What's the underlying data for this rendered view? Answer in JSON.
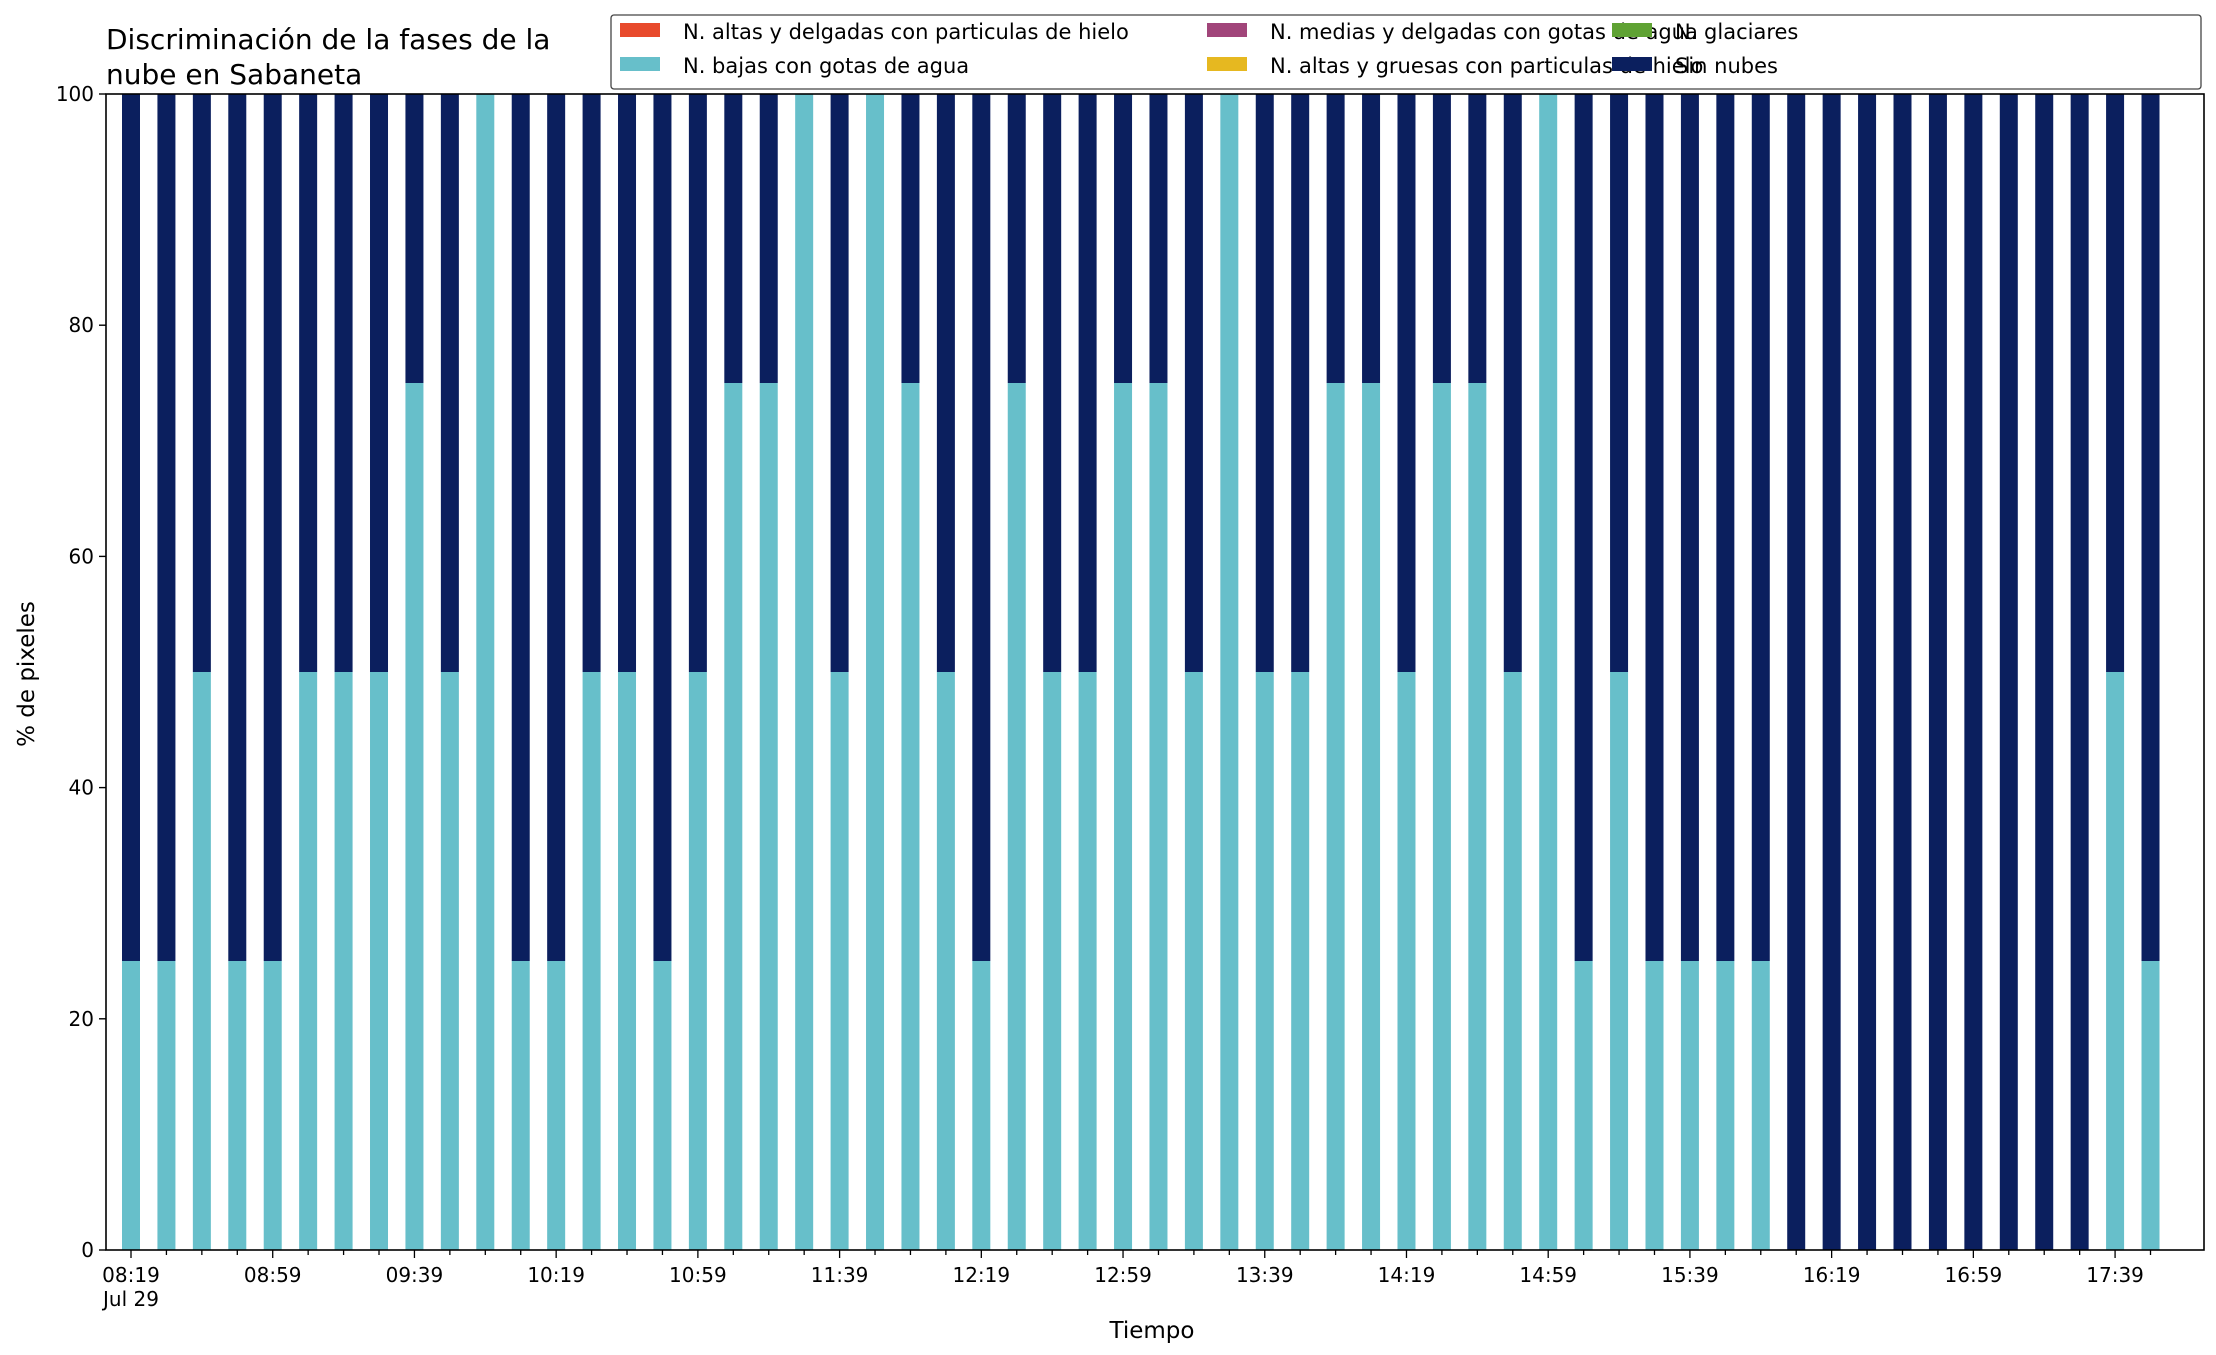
{
  "chart_data": {
    "type": "bar",
    "stacked": true,
    "title_lines": [
      "Discriminación de la fases de la",
      "nube en Sabaneta"
    ],
    "xlabel": "Tiempo",
    "ylabel": "% de pixeles",
    "ylim": [
      0,
      100
    ],
    "yticks": [
      0,
      20,
      40,
      60,
      80,
      100
    ],
    "grid": false,
    "legend_placement": "top-right",
    "categories": [
      "08:19",
      "08:29",
      "08:39",
      "08:49",
      "08:59",
      "09:09",
      "09:19",
      "09:29",
      "09:39",
      "09:49",
      "09:59",
      "10:09",
      "10:19",
      "10:29",
      "10:39",
      "10:49",
      "10:59",
      "11:09",
      "11:19",
      "11:29",
      "11:39",
      "11:49",
      "11:59",
      "12:09",
      "12:19",
      "12:29",
      "12:39",
      "12:49",
      "12:59",
      "13:09",
      "13:19",
      "13:29",
      "13:39",
      "13:49",
      "13:59",
      "14:09",
      "14:19",
      "14:29",
      "14:39",
      "14:49",
      "14:59",
      "15:09",
      "15:19",
      "15:29",
      "15:39",
      "15:49",
      "15:59",
      "16:09",
      "16:19",
      "16:29",
      "16:39",
      "16:49",
      "16:59",
      "17:09",
      "17:19",
      "17:29",
      "17:39",
      "17:49"
    ],
    "xtick_labels": [
      {
        "index": 0,
        "label": "08:19",
        "sublabel": "Jul 29"
      },
      {
        "index": 4,
        "label": "08:59"
      },
      {
        "index": 8,
        "label": "09:39"
      },
      {
        "index": 12,
        "label": "10:19"
      },
      {
        "index": 16,
        "label": "10:59"
      },
      {
        "index": 20,
        "label": "11:39"
      },
      {
        "index": 24,
        "label": "12:19"
      },
      {
        "index": 28,
        "label": "12:59"
      },
      {
        "index": 32,
        "label": "13:39"
      },
      {
        "index": 36,
        "label": "14:19"
      },
      {
        "index": 40,
        "label": "14:59"
      },
      {
        "index": 44,
        "label": "15:39"
      },
      {
        "index": 48,
        "label": "16:19"
      },
      {
        "index": 52,
        "label": "16:59"
      },
      {
        "index": 56,
        "label": "17:39"
      }
    ],
    "series": [
      {
        "name": "N. altas y delgadas con particulas de hielo",
        "color": "#e84a2c",
        "values": [
          0,
          0,
          0,
          0,
          0,
          0,
          0,
          0,
          0,
          0,
          0,
          0,
          0,
          0,
          0,
          0,
          0,
          0,
          0,
          0,
          0,
          0,
          0,
          0,
          0,
          0,
          0,
          0,
          0,
          0,
          0,
          0,
          0,
          0,
          0,
          0,
          0,
          0,
          0,
          0,
          0,
          0,
          0,
          0,
          0,
          0,
          0,
          0,
          0,
          0,
          0,
          0,
          0,
          0,
          0,
          0,
          0,
          0
        ]
      },
      {
        "name": "N. altas y gruesas con particulas de hielo",
        "color": "#e6b820",
        "values": [
          0,
          0,
          0,
          0,
          0,
          0,
          0,
          0,
          0,
          0,
          0,
          0,
          0,
          0,
          0,
          0,
          0,
          0,
          0,
          0,
          0,
          0,
          0,
          0,
          0,
          0,
          0,
          0,
          0,
          0,
          0,
          0,
          0,
          0,
          0,
          0,
          0,
          0,
          0,
          0,
          0,
          0,
          0,
          0,
          0,
          0,
          0,
          0,
          0,
          0,
          0,
          0,
          0,
          0,
          0,
          0,
          0,
          0
        ]
      },
      {
        "name": "N. bajas con gotas de agua",
        "color": "#67bfca",
        "values": [
          25,
          25,
          50,
          25,
          25,
          50,
          50,
          50,
          75,
          50,
          100,
          25,
          25,
          50,
          50,
          25,
          50,
          75,
          75,
          100,
          50,
          100,
          75,
          50,
          25,
          75,
          50,
          50,
          75,
          75,
          50,
          100,
          50,
          50,
          75,
          75,
          50,
          75,
          75,
          50,
          100,
          25,
          50,
          25,
          25,
          25,
          25,
          0,
          0,
          0,
          0,
          0,
          0,
          0,
          0,
          0,
          50,
          25
        ]
      },
      {
        "name": "N. glaciares",
        "color": "#5fa233",
        "values": [
          0,
          0,
          0,
          0,
          0,
          0,
          0,
          0,
          0,
          0,
          0,
          0,
          0,
          0,
          0,
          0,
          0,
          0,
          0,
          0,
          0,
          0,
          0,
          0,
          0,
          0,
          0,
          0,
          0,
          0,
          0,
          0,
          0,
          0,
          0,
          0,
          0,
          0,
          0,
          0,
          0,
          0,
          0,
          0,
          0,
          0,
          0,
          0,
          0,
          0,
          0,
          0,
          0,
          0,
          0,
          0,
          0,
          0
        ]
      },
      {
        "name": "N. medias y delgadas con gotas de agua",
        "color": "#a1457a",
        "values": [
          0,
          0,
          0,
          0,
          0,
          0,
          0,
          0,
          0,
          0,
          0,
          0,
          0,
          0,
          0,
          0,
          0,
          0,
          0,
          0,
          0,
          0,
          0,
          0,
          0,
          0,
          0,
          0,
          0,
          0,
          0,
          0,
          0,
          0,
          0,
          0,
          0,
          0,
          0,
          0,
          0,
          0,
          0,
          0,
          0,
          0,
          0,
          0,
          0,
          0,
          0,
          0,
          0,
          0,
          0,
          0,
          0,
          0
        ]
      },
      {
        "name": "Sin nubes",
        "color": "#0b1f5e",
        "values": [
          75,
          75,
          50,
          75,
          75,
          50,
          50,
          50,
          25,
          50,
          0,
          75,
          75,
          50,
          50,
          75,
          50,
          25,
          25,
          0,
          50,
          0,
          25,
          50,
          75,
          25,
          50,
          50,
          25,
          25,
          50,
          0,
          50,
          50,
          25,
          25,
          50,
          25,
          25,
          50,
          0,
          75,
          50,
          75,
          75,
          75,
          75,
          100,
          100,
          100,
          100,
          100,
          100,
          100,
          100,
          100,
          50,
          75
        ]
      }
    ],
    "legend_order": [
      0,
      2,
      4,
      1,
      3,
      5
    ]
  }
}
